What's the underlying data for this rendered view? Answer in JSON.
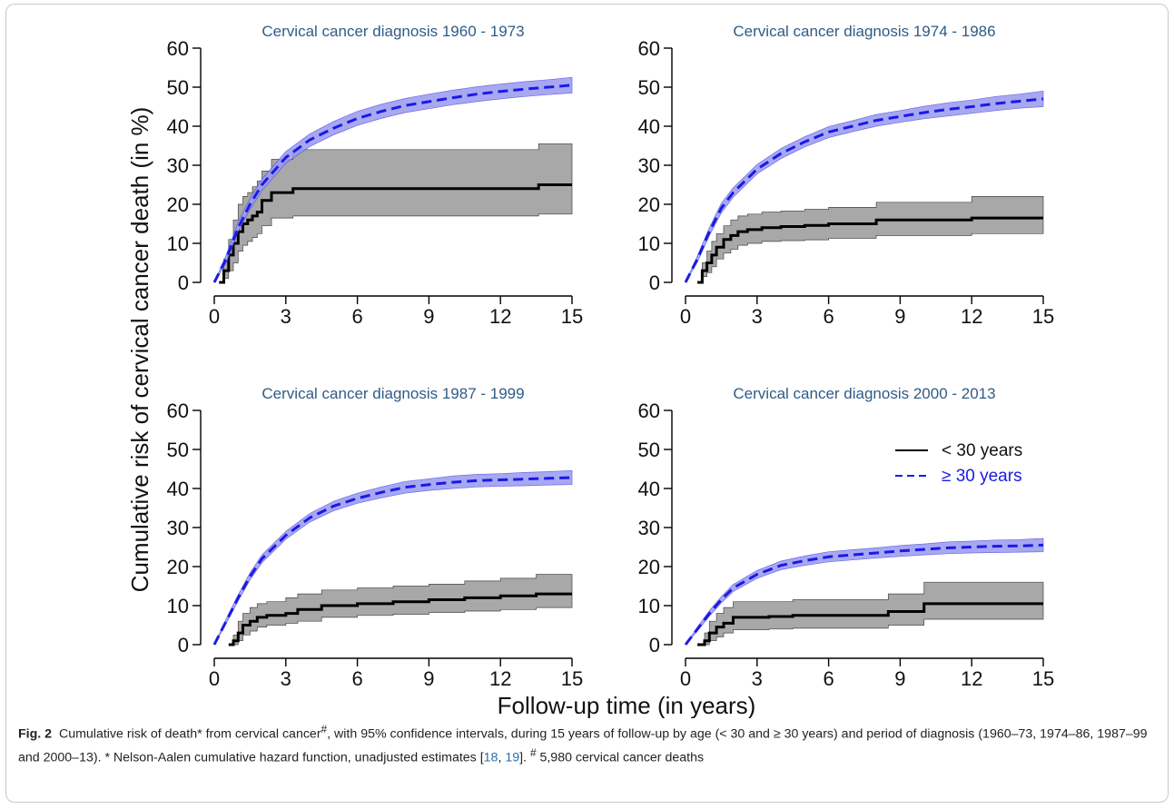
{
  "figure": {
    "x_axis_label": "Follow-up time (in years)",
    "y_axis_label": "Cumulative risk of cervical cancer death (in %)",
    "legend": {
      "under30": "< 30 years",
      "over30": "≥ 30 years"
    },
    "colors": {
      "under30": "#000000",
      "under30_ci": "#a8a8a8",
      "over30": "#1a1ae6",
      "over30_ci": "#9a9af0"
    }
  },
  "caption": {
    "label": "Fig. 2",
    "text_a": "Cumulative risk of death* from cervical cancer",
    "sup_a": "#",
    "text_b": ", with 95% confidence intervals, during 15 years of follow-up by age (< 30 and ≥ 30 years) and period of diagnosis (1960–73, 1974–86, 1987–99 and 2000–13). * Nelson-Aalen cumulative hazard function, unadjusted estimates ",
    "ref_open": "[",
    "ref1": "18",
    "ref_sep": ", ",
    "ref2": "19",
    "ref_close": "]. ",
    "sup_b": "#",
    "text_c": " 5,980 cervical cancer deaths"
  },
  "chart_data": [
    {
      "type": "line",
      "title": "Cervical cancer diagnosis 1960 - 1973",
      "xlim": [
        0,
        15
      ],
      "ylim": [
        0,
        60
      ],
      "x_ticks": [
        0,
        3,
        6,
        9,
        12,
        15
      ],
      "y_ticks": [
        0,
        10,
        20,
        30,
        40,
        50,
        60
      ],
      "series": [
        {
          "name": "< 30 years",
          "step": true,
          "x": [
            0.2,
            0.4,
            0.6,
            0.8,
            1.0,
            1.2,
            1.4,
            1.6,
            1.8,
            2.0,
            2.4,
            3.3,
            13.6,
            15
          ],
          "y": [
            0,
            3,
            7,
            10,
            13,
            15,
            16,
            17,
            18,
            21,
            23,
            24,
            25,
            25
          ],
          "lower": [
            0,
            1,
            3,
            5,
            8,
            9.5,
            10.5,
            11.5,
            12.5,
            14.5,
            16.5,
            17,
            17.5,
            17.5
          ],
          "upper": [
            0,
            6,
            11,
            16,
            20,
            22,
            23,
            24.5,
            26,
            28.5,
            31.5,
            34,
            35.5,
            35.5
          ]
        },
        {
          "name": "≥ 30 years",
          "step": false,
          "x": [
            0,
            0.5,
            1,
            1.5,
            2,
            3,
            4,
            5,
            6,
            7,
            8,
            9,
            10,
            11,
            12,
            13,
            14,
            15
          ],
          "y": [
            0,
            6,
            14,
            20,
            25,
            32,
            36.5,
            39.5,
            42,
            43.8,
            45.3,
            46.3,
            47.3,
            48.2,
            48.9,
            49.5,
            50,
            50.5
          ],
          "lower": [
            0,
            5,
            13,
            18.7,
            23.5,
            30.5,
            34.8,
            37.8,
            40.2,
            42,
            43.5,
            44.5,
            45.5,
            46.3,
            47,
            47.6,
            48.1,
            48.5
          ],
          "upper": [
            0,
            7,
            15.5,
            21.5,
            26.5,
            33.5,
            38,
            41.2,
            43.8,
            45.6,
            47.1,
            48.2,
            49.2,
            50.1,
            50.8,
            51.4,
            51.9,
            52.5
          ]
        }
      ]
    },
    {
      "type": "line",
      "title": "Cervical cancer diagnosis 1974 - 1986",
      "xlim": [
        0,
        15
      ],
      "ylim": [
        0,
        60
      ],
      "x_ticks": [
        0,
        3,
        6,
        9,
        12,
        15
      ],
      "y_ticks": [
        0,
        10,
        20,
        30,
        40,
        50,
        60
      ],
      "series": [
        {
          "name": "< 30 years",
          "step": true,
          "x": [
            0.5,
            0.7,
            0.9,
            1.1,
            1.3,
            1.6,
            1.9,
            2.2,
            2.6,
            3.2,
            4.0,
            5.0,
            6.0,
            8.0,
            12.0,
            15
          ],
          "y": [
            0,
            3,
            5,
            7,
            9,
            11,
            12,
            13,
            13.5,
            14,
            14.3,
            14.6,
            15,
            16,
            16.5,
            16.5
          ],
          "lower": [
            0,
            1.5,
            2.5,
            4,
            6,
            7.5,
            8.5,
            9.5,
            10,
            10.5,
            10.7,
            10.9,
            11.3,
            12,
            12.5,
            12.5
          ],
          "upper": [
            0,
            5,
            8,
            10.5,
            12.5,
            14.5,
            16,
            17,
            17.5,
            18,
            18.3,
            18.7,
            19.2,
            20.5,
            22,
            22
          ]
        },
        {
          "name": "≥ 30 years",
          "step": false,
          "x": [
            0,
            0.5,
            1,
            1.5,
            2,
            3,
            4,
            5,
            6,
            7,
            8,
            9,
            10,
            11,
            12,
            13,
            14,
            15
          ],
          "y": [
            0,
            6,
            13,
            19,
            23,
            29,
            33,
            36,
            38.5,
            40,
            41.5,
            42.5,
            43.5,
            44.3,
            45,
            45.8,
            46.4,
            47
          ],
          "lower": [
            0,
            5.2,
            12,
            17.8,
            21.8,
            27.8,
            31.7,
            34.7,
            37.1,
            38.6,
            40,
            41,
            41.9,
            42.6,
            43.3,
            44,
            44.6,
            45
          ],
          "upper": [
            0,
            6.8,
            14,
            20.2,
            24.2,
            30.2,
            34.3,
            37.3,
            39.9,
            41.4,
            43,
            44,
            45.1,
            46,
            46.7,
            47.6,
            48.2,
            49
          ]
        }
      ]
    },
    {
      "type": "line",
      "title": "Cervical cancer diagnosis 1987 - 1999",
      "xlim": [
        0,
        15
      ],
      "ylim": [
        0,
        60
      ],
      "x_ticks": [
        0,
        3,
        6,
        9,
        12,
        15
      ],
      "y_ticks": [
        0,
        10,
        20,
        30,
        40,
        50,
        60
      ],
      "series": [
        {
          "name": "< 30 years",
          "step": true,
          "x": [
            0.6,
            0.8,
            1.0,
            1.2,
            1.5,
            1.8,
            2.2,
            3.0,
            3.5,
            4.5,
            6.0,
            7.5,
            9.0,
            10.5,
            12.0,
            13.5,
            15
          ],
          "y": [
            0,
            1,
            3,
            5,
            6,
            7,
            7.5,
            8,
            9,
            10,
            10.5,
            11,
            11.5,
            12,
            12.5,
            13,
            13
          ],
          "lower": [
            0,
            0,
            1,
            2.5,
            3.5,
            4.5,
            5,
            5.5,
            6,
            7,
            7.5,
            7.8,
            8.2,
            8.6,
            9,
            9.5,
            9.5
          ],
          "upper": [
            0,
            2.5,
            6,
            8,
            9.5,
            10.5,
            11,
            12,
            13,
            14,
            14.5,
            15,
            15.5,
            16.3,
            17,
            18,
            18
          ]
        },
        {
          "name": "≥ 30 years",
          "step": false,
          "x": [
            0,
            0.5,
            1,
            1.5,
            2,
            3,
            4,
            5,
            6,
            7,
            8,
            9,
            10,
            11,
            12,
            13,
            14,
            15
          ],
          "y": [
            0,
            6,
            12,
            17.5,
            22,
            28,
            32.5,
            35.5,
            37.5,
            39,
            40.3,
            41,
            41.6,
            42,
            42.2,
            42.4,
            42.6,
            42.8
          ],
          "lower": [
            0,
            5.4,
            11.2,
            16.6,
            21,
            27,
            31.4,
            34.3,
            36.2,
            37.6,
            38.8,
            39.5,
            40,
            40.4,
            40.6,
            40.7,
            40.9,
            41
          ],
          "upper": [
            0,
            6.6,
            12.8,
            18.4,
            23,
            29,
            33.6,
            36.7,
            38.8,
            40.4,
            41.8,
            42.5,
            43.2,
            43.6,
            43.8,
            44.1,
            44.3,
            44.6
          ]
        }
      ]
    },
    {
      "type": "line",
      "title": "Cervical cancer diagnosis 2000 - 2013",
      "xlim": [
        0,
        15
      ],
      "ylim": [
        0,
        60
      ],
      "x_ticks": [
        0,
        3,
        6,
        9,
        12,
        15
      ],
      "y_ticks": [
        0,
        10,
        20,
        30,
        40,
        50,
        60
      ],
      "legend": "top-right",
      "series": [
        {
          "name": "< 30 years",
          "step": true,
          "x": [
            0.5,
            0.8,
            1.0,
            1.3,
            1.6,
            2.0,
            3.5,
            4.5,
            8.5,
            10.0,
            15
          ],
          "y": [
            0,
            1,
            3,
            4.5,
            5.5,
            7,
            7.2,
            7.5,
            8.5,
            10.5,
            10.5
          ],
          "lower": [
            0,
            0,
            1,
            2,
            3,
            3.8,
            4,
            4.2,
            5,
            6.5,
            6.5
          ],
          "upper": [
            0,
            3,
            6,
            8,
            9.5,
            11,
            11,
            11.5,
            13,
            16,
            16
          ]
        },
        {
          "name": "≥ 30 years",
          "step": false,
          "x": [
            0,
            0.5,
            1,
            1.5,
            2,
            3,
            4,
            5,
            6,
            7,
            8,
            9,
            10,
            11,
            12,
            13,
            14,
            15
          ],
          "y": [
            0,
            4,
            8,
            11.5,
            14.5,
            18,
            20.3,
            21.5,
            22.5,
            23,
            23.5,
            24,
            24.4,
            24.8,
            25,
            25.2,
            25.3,
            25.5
          ],
          "lower": [
            0,
            3.5,
            7.3,
            10.7,
            13.6,
            17,
            19.2,
            20.3,
            21.2,
            21.7,
            22.2,
            22.6,
            23,
            23.3,
            23.5,
            23.6,
            23.7,
            23.8
          ],
          "upper": [
            0,
            4.5,
            8.7,
            12.3,
            15.4,
            19,
            21.4,
            22.7,
            23.8,
            24.3,
            24.8,
            25.4,
            25.8,
            26.3,
            26.5,
            26.8,
            26.9,
            27.2
          ]
        }
      ]
    }
  ]
}
